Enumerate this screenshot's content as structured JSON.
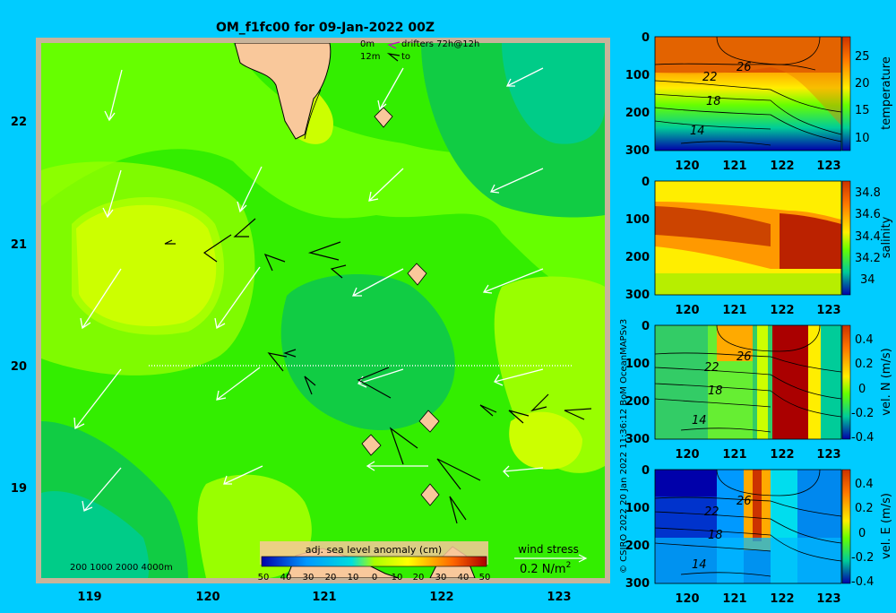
{
  "title": "OM_f1fc00 for 09-Jan-2022 00Z",
  "colors": {
    "background": "#00ccff",
    "land": "#f9c89b",
    "frame": "#c8b49a"
  },
  "map": {
    "lon_ticks": [
      "119",
      "120",
      "121",
      "122",
      "123"
    ],
    "lat_ticks": [
      "22",
      "21",
      "20",
      "19"
    ],
    "legend_top": {
      "drifters_0m": "0m",
      "drifters_label": "drifters 72h@12h",
      "drifters_12m": "12m",
      "to_label": "to"
    },
    "bathymetry_label": "200  1000  2000  4000m",
    "colorbar": {
      "label": "adj. sea level anomaly (cm)",
      "ticks": [
        "50",
        "40",
        "30",
        "20",
        "10",
        "0",
        "10",
        "20",
        "30",
        "40",
        "50"
      ]
    },
    "wind_stress": {
      "label": "wind stress",
      "scale": "0.2 N/m",
      "exponent": "2"
    }
  },
  "side_panels": {
    "x_ticks": [
      "120",
      "121",
      "122",
      "123"
    ],
    "depth_ticks": [
      "0",
      "100",
      "200",
      "300"
    ],
    "panels": [
      {
        "name": "temperature",
        "label": "temperature",
        "cticks": [
          "25",
          "20",
          "15",
          "10"
        ],
        "contours": [
          "26",
          "22",
          "18",
          "14"
        ]
      },
      {
        "name": "salinity",
        "label": "salinity",
        "cticks": [
          "34.8",
          "34.6",
          "34.4",
          "34.2",
          "34"
        ],
        "contours": []
      },
      {
        "name": "vel-n",
        "label": "vel. N (m/s)",
        "cticks": [
          "0.4",
          "0.2",
          "0",
          "-0.2",
          "-0.4"
        ],
        "contours": [
          "26",
          "22",
          "18",
          "14"
        ]
      },
      {
        "name": "vel-e",
        "label": "vel. E (m/s)",
        "cticks": [
          "0.4",
          "0.2",
          "0",
          "-0.2",
          "-0.4"
        ],
        "contours": [
          "26",
          "22",
          "18",
          "14"
        ]
      }
    ]
  },
  "credit": "© CSIRO 2022  20 Jan 2022 11:36:12 BoM OceanMAPSv3"
}
